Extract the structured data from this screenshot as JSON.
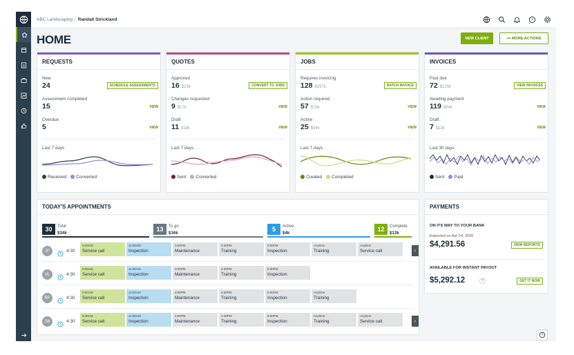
{
  "topbar": {
    "company": "ABC Landscaping",
    "user": "Randall Strickland"
  },
  "page": {
    "title": "HOME",
    "new_client": "NEW CLIENT",
    "more_actions": "••• MORE ACTIONS"
  },
  "cards": {
    "requests": {
      "title": "REQUESTS",
      "color": "#7b61c9",
      "stats": [
        {
          "label": "New",
          "value": "24",
          "sub": "",
          "action": "SCHEDULE ASSESSMENTS"
        },
        {
          "label": "Assessment completed",
          "value": "15",
          "sub": "",
          "action": "VIEW"
        },
        {
          "label": "Overdue",
          "value": "5",
          "sub": "",
          "action": "VIEW"
        }
      ],
      "spark_label": "Last 7 days",
      "legend": [
        "Received",
        "Converted"
      ]
    },
    "quotes": {
      "title": "QUOTES",
      "color": "#b54e87",
      "stats": [
        {
          "label": "Approved",
          "value": "16",
          "sub": "$23k",
          "action": "CONVERT TO JOBS"
        },
        {
          "label": "Changes requested",
          "value": "9",
          "sub": "$17k",
          "action": "VIEW"
        },
        {
          "label": "Draft",
          "value": "11",
          "sub": "$18k",
          "action": "VIEW"
        }
      ],
      "spark_label": "Last 7 days",
      "legend": [
        "Sent",
        "Converted"
      ]
    },
    "jobs": {
      "title": "JOBS",
      "color": "#9bc41c",
      "stats": [
        {
          "label": "Requires invoicing",
          "value": "128",
          "sub": "$257k",
          "action": "BATCH INVOICE"
        },
        {
          "label": "Action required",
          "value": "57",
          "sub": "$76k",
          "action": "VIEW"
        },
        {
          "label": "Active",
          "value": "25",
          "sub": "$34k",
          "action": "VIEW"
        }
      ],
      "spark_label": "Last 7 days",
      "legend": [
        "Created",
        "Completed"
      ]
    },
    "invoices": {
      "title": "INVOICES",
      "color": "#6a5ab8",
      "stats": [
        {
          "label": "Past due",
          "value": "72",
          "sub": "$125k",
          "action": "VIEW INVOICES"
        },
        {
          "label": "Awaiting payment",
          "value": "119",
          "sub": "$54k",
          "action": "VIEW"
        },
        {
          "label": "Draft",
          "value": "7",
          "sub": "$12k",
          "action": "VIEW"
        }
      ],
      "spark_label": "Last 30 days",
      "legend": [
        "Sent",
        "Paid"
      ]
    }
  },
  "appointments": {
    "title": "TODAY'S APPOINTMENTS",
    "summary": [
      {
        "count": "30",
        "label": "Total",
        "amount": "$34k",
        "color": "#1f2d3a"
      },
      {
        "count": "13",
        "label": "To go",
        "amount": "$16k",
        "color": "#6b7680"
      },
      {
        "count": "5",
        "label": "Active",
        "amount": "$4k",
        "color": "#2d9ce6"
      },
      {
        "count": "12",
        "label": "Complete",
        "amount": "$13k",
        "color": "#7db00e"
      }
    ],
    "rows": [
      {
        "initials": "JF",
        "hours": "4:30",
        "more": true,
        "visits": [
          {
            "time": "9:00AM",
            "name": "Service call",
            "state": "green"
          },
          {
            "time": "11:00AM",
            "name": "Inspection",
            "state": "blue"
          },
          {
            "time": "3:00PM",
            "name": "Maintenance",
            "state": "grey"
          },
          {
            "time": "4:30PM",
            "name": "Training",
            "state": "grey"
          },
          {
            "time": "5:00PM",
            "name": "Inspection",
            "state": "grey"
          },
          {
            "time": "Anytime",
            "name": "Training",
            "state": "grey"
          },
          {
            "time": "Anytime",
            "name": "Service call",
            "state": "grey"
          }
        ]
      },
      {
        "initials": "VL",
        "hours": "4:30",
        "more": false,
        "visits": [
          {
            "time": "9:00AM",
            "name": "Service call",
            "state": "green"
          },
          {
            "time": "11:00AM",
            "name": "Inspection",
            "state": "blue"
          },
          {
            "time": "3:00PM",
            "name": "Maintenance",
            "state": "grey"
          },
          {
            "time": "4:30PM",
            "name": "Training",
            "state": "grey"
          },
          {
            "time": "5:00PM",
            "name": "Inspection",
            "state": "grey"
          }
        ]
      },
      {
        "initials": "RF",
        "hours": "4:30",
        "more": false,
        "visits": [
          {
            "time": "9:00AM",
            "name": "Service call",
            "state": "green"
          },
          {
            "time": "11:00AM",
            "name": "Inspection",
            "state": "blue"
          },
          {
            "time": "3:00PM",
            "name": "Maintenance",
            "state": "grey"
          },
          {
            "time": "4:30PM",
            "name": "Training",
            "state": "grey"
          },
          {
            "time": "5:00PM",
            "name": "Inspection",
            "state": "grey"
          },
          {
            "time": "Anytime",
            "name": "Training",
            "state": "grey"
          }
        ]
      },
      {
        "initials": "JW",
        "hours": "4:30",
        "more": true,
        "visits": [
          {
            "time": "9:00AM",
            "name": "Service call",
            "state": "green"
          },
          {
            "time": "11:00AM",
            "name": "Inspection",
            "state": "blue"
          },
          {
            "time": "3:00PM",
            "name": "Maintenance",
            "state": "grey"
          },
          {
            "time": "4:30PM",
            "name": "Training",
            "state": "grey"
          },
          {
            "time": "5:00PM",
            "name": "Inspection",
            "state": "grey"
          },
          {
            "time": "Anytime",
            "name": "Training",
            "state": "grey"
          },
          {
            "time": "Anytime",
            "name": "Service call",
            "state": "grey"
          }
        ]
      }
    ]
  },
  "payments": {
    "title": "PAYMENTS",
    "bank_label": "ON ITS WAY TO YOUR BANK",
    "bank_expected": "Expected on Apr 14, 2020",
    "bank_amount": "$4,291.56",
    "bank_action": "VIEW REPORTS",
    "instant_label": "AVAILABLE FOR INSTANT PAYOUT",
    "instant_amount": "$5,292.12",
    "instant_action": "GET IT NOW"
  }
}
